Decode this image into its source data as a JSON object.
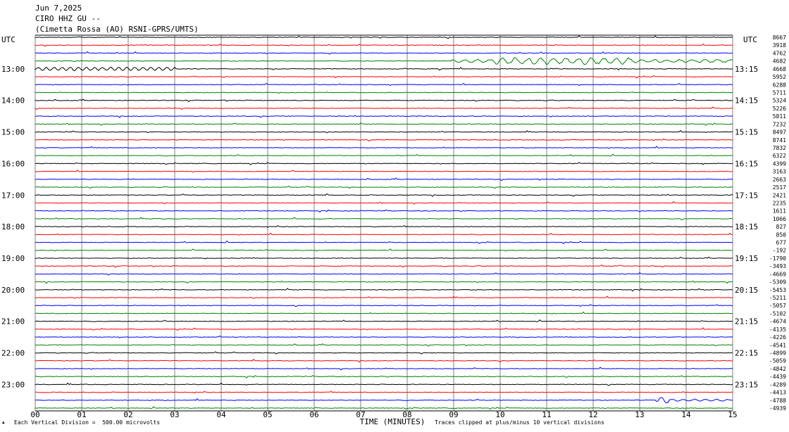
{
  "header": {
    "date": "Jun 7,2025",
    "station": "CIRO HHZ GU --",
    "site": "(Cimetta Rossa (AO) RSNI-GPRS/UMTS)"
  },
  "footer": {
    "scale": "Each Vertical Division =  500.00 microvolts",
    "clip": "Traces clipped at plus/minus 10 vertical divisions"
  },
  "chart_data": {
    "type": "line",
    "title": "CIRO HHZ GU --",
    "xlabel": "TIME (MINUTES)",
    "xlim": [
      0,
      15
    ],
    "x_ticks": [
      "00",
      "01",
      "02",
      "03",
      "04",
      "05",
      "06",
      "07",
      "08",
      "09",
      "10",
      "11",
      "12",
      "13",
      "14",
      "15"
    ],
    "left_label": "UTC",
    "right_label": "UTC",
    "left_hours": [
      "13:00",
      "14:00",
      "15:00",
      "16:00",
      "17:00",
      "18:00",
      "19:00",
      "20:00",
      "21:00",
      "22:00",
      "23:00"
    ],
    "right_hours": [
      "13:15",
      "14:15",
      "15:15",
      "16:15",
      "17:15",
      "18:15",
      "19:15",
      "20:15",
      "21:15",
      "22:15",
      "23:15"
    ],
    "trace_colors": [
      "#000000",
      "#ff0000",
      "#0000ff",
      "#008000"
    ],
    "grid": true,
    "trace_offsets": [
      "8667",
      "3918",
      "4762",
      "4682",
      "4668",
      "5952",
      "6288",
      "5711",
      "5324",
      "5226",
      "5811",
      "7232",
      "8497",
      "8741",
      "7832",
      "6322",
      "4399",
      "3163",
      "2663",
      "2517",
      "2421",
      "2235",
      "1611",
      "1066",
      "827",
      "850",
      "677",
      "-192",
      "-1790",
      "-3493",
      "-4669",
      "-5309",
      "-5453",
      "-5211",
      "-5057",
      "-5102",
      "-4674",
      "-4135",
      "-4226",
      "-4541",
      "-4899",
      "-5059",
      "-4842",
      "-4439",
      "-4289",
      "-4413",
      "-4788",
      "-4939"
    ]
  }
}
